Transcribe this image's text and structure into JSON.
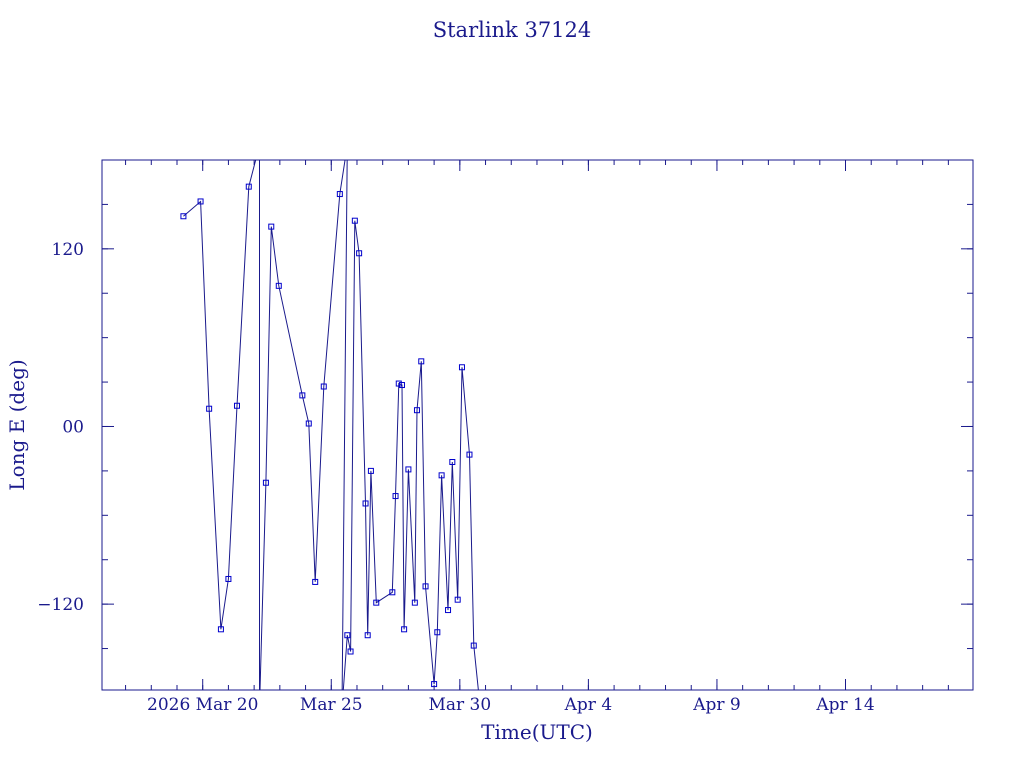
{
  "chart_data": {
    "type": "line",
    "title": "Starlink 37124",
    "xlabel": "Time(UTC)",
    "ylabel": "Long E (deg)",
    "x_tick_labels": [
      "2026 Mar 20",
      "Mar 25",
      "Mar 30",
      "Apr  4",
      "Apr  9",
      "Apr 14"
    ],
    "x_tick_dates": [
      "2026-03-20",
      "2026-03-25",
      "2026-03-30",
      "2026-04-04",
      "2026-04-09",
      "2026-04-14"
    ],
    "xlim": [
      "2026-03-16T02:00",
      "2026-04-18T23:00"
    ],
    "y_ticks": [
      -120,
      0,
      120
    ],
    "y_tick_labels": [
      "−120",
      "00",
      "120"
    ],
    "ylim": [
      -178,
      180
    ],
    "grid": false,
    "legend": "none",
    "colors": {
      "line": "#1a1a8c",
      "marker": "#0000cc",
      "text": "#1a1a8c"
    },
    "series": [
      {
        "points": [
          [
            "2026-03-19T06:00",
            142
          ],
          [
            "2026-03-19T22:00",
            152
          ],
          [
            "2026-03-20T06:00",
            12
          ],
          [
            "2026-03-20T17:00",
            -137
          ],
          [
            "2026-03-21T00:00",
            -103
          ],
          [
            "2026-03-21T08:00",
            14
          ],
          [
            "2026-03-21T19:00",
            162
          ],
          [
            "2026-03-22T05:00",
            190
          ],
          [
            "2026-03-22T05:00",
            -190
          ],
          [
            "2026-03-22T11:00",
            -38
          ],
          [
            "2026-03-22T16:00",
            135
          ],
          [
            "2026-03-22T23:00",
            95
          ],
          [
            "2026-03-23T21:00",
            21
          ],
          [
            "2026-03-24T03:00",
            2
          ],
          [
            "2026-03-24T09:00",
            -105
          ],
          [
            "2026-03-24T17:00",
            27
          ],
          [
            "2026-03-25T08:00",
            157
          ],
          [
            "2026-03-25T15:00",
            190
          ],
          [
            "2026-03-25T10:00",
            -190
          ],
          [
            "2026-03-25T15:00",
            -141
          ],
          [
            "2026-03-25T18:00",
            -152
          ],
          [
            "2026-03-25T22:00",
            139
          ],
          [
            "2026-03-26T02:00",
            117
          ],
          [
            "2026-03-26T08:00",
            -52
          ],
          [
            "2026-03-26T10:00",
            -141
          ],
          [
            "2026-03-26T13:00",
            -30
          ],
          [
            "2026-03-26T18:00",
            -119
          ],
          [
            "2026-03-27T09:00",
            -112
          ],
          [
            "2026-03-27T12:00",
            -47
          ],
          [
            "2026-03-27T15:00",
            29
          ],
          [
            "2026-03-27T18:00",
            28
          ],
          [
            "2026-03-27T20:00",
            -137
          ],
          [
            "2026-03-28T00:00",
            -29
          ],
          [
            "2026-03-28T06:00",
            -119
          ],
          [
            "2026-03-28T08:00",
            11
          ],
          [
            "2026-03-28T12:00",
            44
          ],
          [
            "2026-03-28T16:00",
            -108
          ],
          [
            "2026-03-29T00:00",
            -174
          ],
          [
            "2026-03-29T03:00",
            -139
          ],
          [
            "2026-03-29T07:00",
            -33
          ],
          [
            "2026-03-29T13:00",
            -124
          ],
          [
            "2026-03-29T17:00",
            -24
          ],
          [
            "2026-03-29T22:00",
            -117
          ],
          [
            "2026-03-30T02:00",
            40
          ],
          [
            "2026-03-30T09:00",
            -19
          ],
          [
            "2026-03-30T13:00",
            -148
          ],
          [
            "2026-03-30T19:00",
            -190
          ]
        ]
      }
    ]
  }
}
